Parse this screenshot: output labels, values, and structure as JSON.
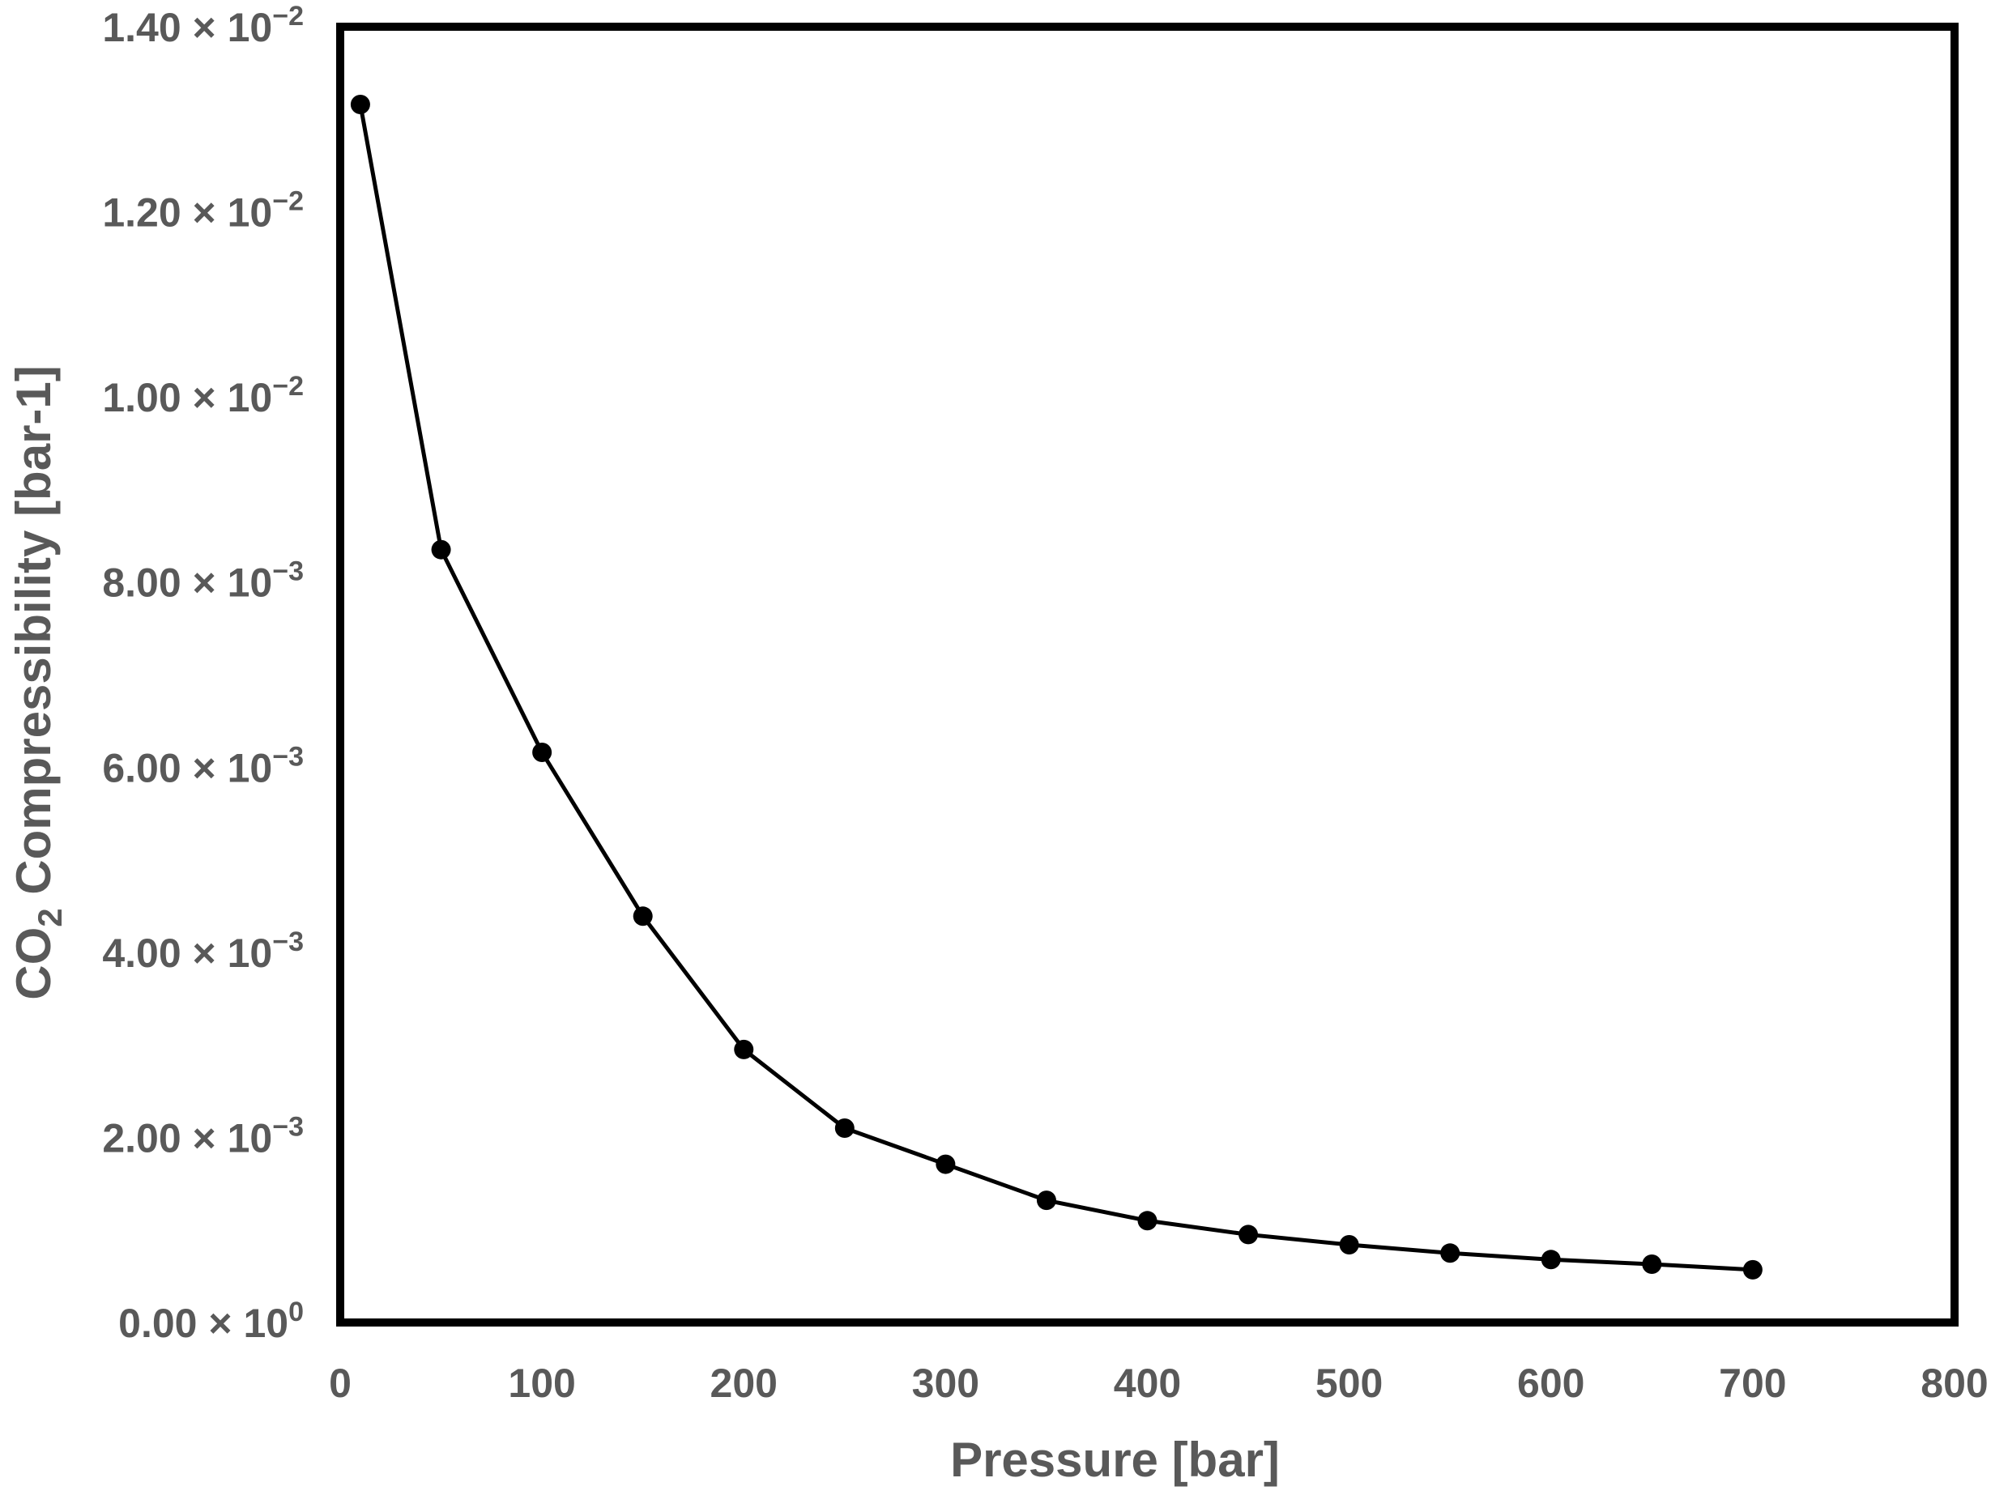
{
  "chart_data": {
    "type": "line",
    "title": "",
    "xlabel": "Pressure [bar]",
    "ylabel": {
      "main": "CO",
      "subscript": "2",
      "rest": " Compressibility [bar-1]"
    },
    "xlim": [
      0,
      800
    ],
    "ylim": [
      0,
      0.014
    ],
    "grid": false,
    "legend": "none",
    "x_ticks": [
      "0",
      "100",
      "200",
      "300",
      "400",
      "500",
      "600",
      "700",
      "800"
    ],
    "y_ticks": [
      {
        "mantissa": "0.00",
        "exponent": "0"
      },
      {
        "mantissa": "2.00",
        "exponent": "-3"
      },
      {
        "mantissa": "4.00",
        "exponent": "-3"
      },
      {
        "mantissa": "6.00",
        "exponent": "-3"
      },
      {
        "mantissa": "8.00",
        "exponent": "-3"
      },
      {
        "mantissa": "1.00",
        "exponent": "-2"
      },
      {
        "mantissa": "1.20",
        "exponent": "-2"
      },
      {
        "mantissa": "1.40",
        "exponent": "-2"
      }
    ],
    "series": [
      {
        "x": [
          10,
          50,
          100,
          150,
          200,
          250,
          300,
          350,
          400,
          450,
          500,
          550,
          600,
          650,
          700
        ],
        "y": [
          0.01316,
          0.00835,
          0.00616,
          0.00439,
          0.00295,
          0.0021,
          0.00171,
          0.00132,
          0.0011,
          0.00095,
          0.00084,
          0.00075,
          0.00068,
          0.00063,
          0.00057
        ]
      }
    ],
    "colors": {
      "line": "#000000",
      "marker": "#000000",
      "frame": "#000000",
      "text": "#595959"
    }
  }
}
